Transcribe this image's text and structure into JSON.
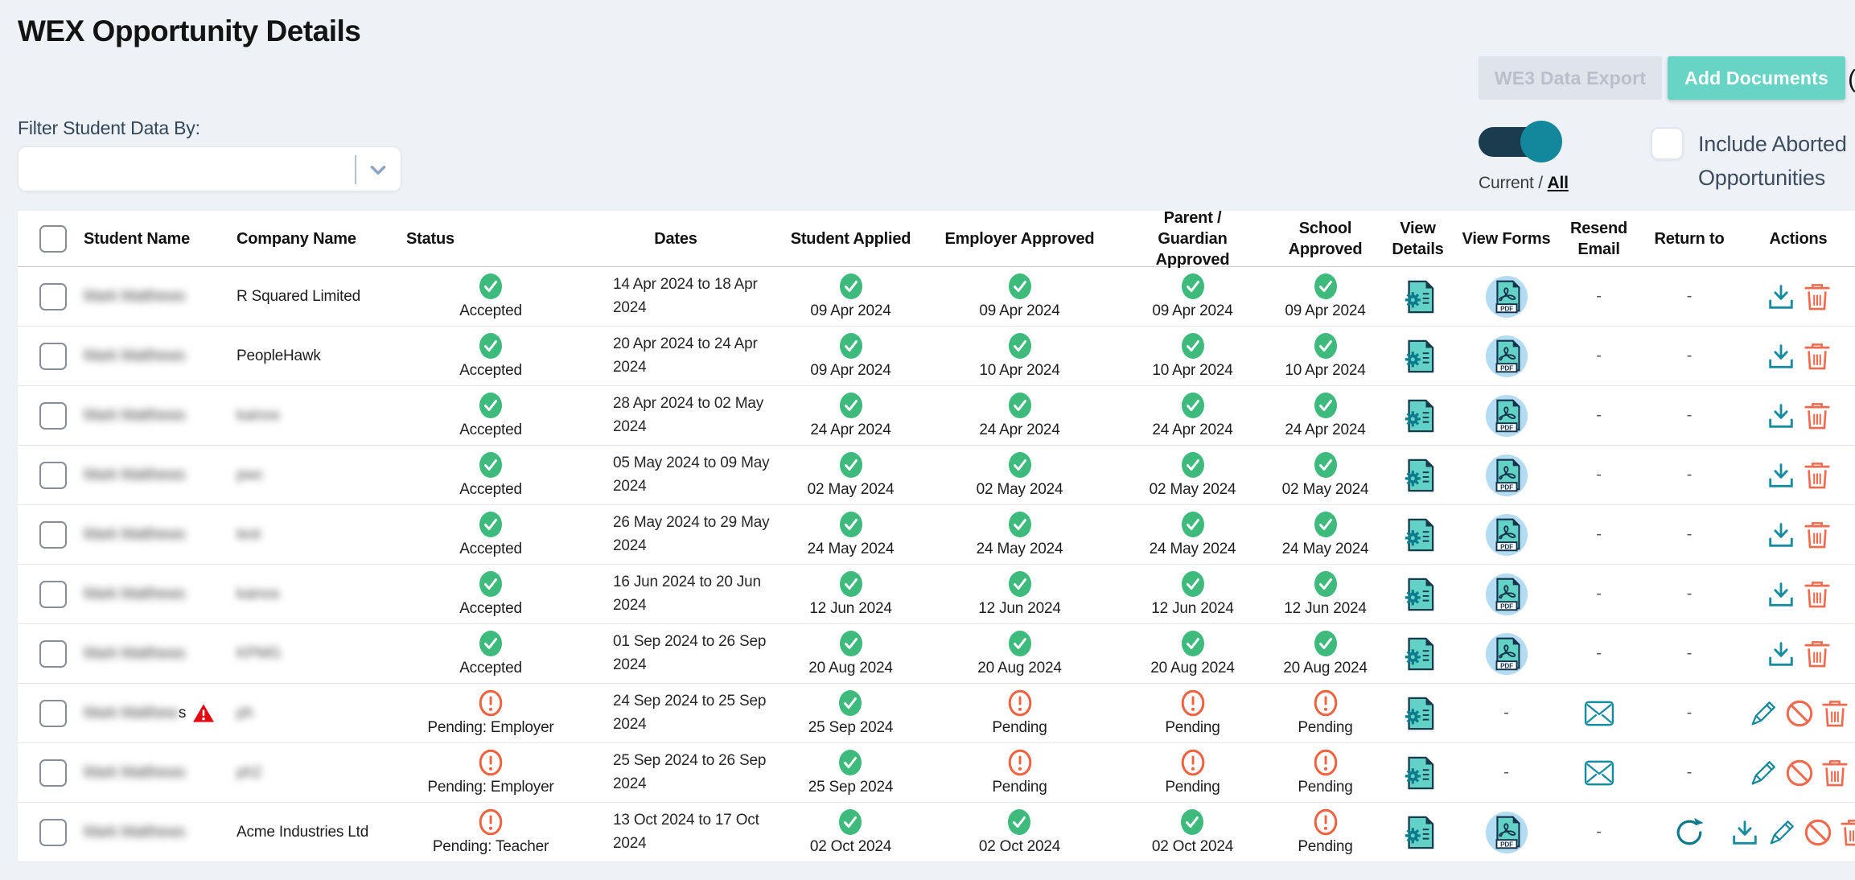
{
  "page": {
    "title": "WEX Opportunity Details"
  },
  "toolbar": {
    "we3_export": "WE3 Data Export",
    "add_documents": "Add Documents",
    "clipped_text": "(",
    "view_toggle": {
      "left": "Current",
      "sep": " / ",
      "right": "All"
    },
    "include_aborted": "Include Aborted Opportunities"
  },
  "filter": {
    "label": "Filter Student Data By:",
    "value": ""
  },
  "colors": {
    "page_bg": "#eef1f6",
    "accent_teal": "#67d4c6",
    "toggle_track": "#1b3b4f",
    "toggle_knob": "#13889c",
    "approved_green": "#3eba7c",
    "pending_orange": "#f2613e",
    "icon_teal": "#168ca0",
    "danger_orange": "#f26a4e",
    "alert_red": "#e30b13",
    "pdf_circle_blue": "#b3dcf2",
    "disabled_btn_bg": "#dfe3ea"
  },
  "icons": {
    "view_details": "gear-document-icon",
    "view_forms": "pdf-file-icon",
    "resend_email": "envelope-icon",
    "return_to": "refresh-icon",
    "download": "download-icon",
    "edit": "pencil-icon",
    "cancel": "ban-icon",
    "delete": "trash-icon",
    "warning": "alert-triangle-icon",
    "approved": "check-circle-icon",
    "pending": "exclamation-circle-icon"
  },
  "table": {
    "empty_marker": "-",
    "headers": [
      "Student Name",
      "Company Name",
      "Status",
      "Dates",
      "Student Applied",
      "Employer Approved",
      "Parent / Guardian Approved",
      "School Approved",
      "View Details",
      "View Forms",
      "Resend Email",
      "Return to",
      "Actions"
    ],
    "rows": [
      {
        "student": "Mark Matthews",
        "student_blurred": true,
        "student_suffix": "",
        "warning": false,
        "company": "R Squared Limited",
        "company_blurred": false,
        "status": {
          "state": "approved",
          "label": "Accepted"
        },
        "dates": "14 Apr 2024 to 18 Apr 2024",
        "student_applied": {
          "state": "approved",
          "text": "09 Apr 2024"
        },
        "employer_approved": {
          "state": "approved",
          "text": "09 Apr 2024"
        },
        "parent_guardian_approved": {
          "state": "approved",
          "text": "09 Apr 2024"
        },
        "school_approved": {
          "state": "approved",
          "text": "09 Apr 2024"
        },
        "view_details": true,
        "view_forms": "pdf",
        "resend_email": "none",
        "return_to": "none",
        "actions": [
          "download",
          "delete"
        ]
      },
      {
        "student": "Mark Matthews",
        "student_blurred": true,
        "student_suffix": "",
        "warning": false,
        "company": "PeopleHawk",
        "company_blurred": false,
        "status": {
          "state": "approved",
          "label": "Accepted"
        },
        "dates": "20 Apr 2024 to 24 Apr 2024",
        "student_applied": {
          "state": "approved",
          "text": "09 Apr 2024"
        },
        "employer_approved": {
          "state": "approved",
          "text": "10 Apr 2024"
        },
        "parent_guardian_approved": {
          "state": "approved",
          "text": "10 Apr 2024"
        },
        "school_approved": {
          "state": "approved",
          "text": "10 Apr 2024"
        },
        "view_details": true,
        "view_forms": "pdf",
        "resend_email": "none",
        "return_to": "none",
        "actions": [
          "download",
          "delete"
        ]
      },
      {
        "student": "Mark Matthews",
        "student_blurred": true,
        "student_suffix": "",
        "warning": false,
        "company": "kainos",
        "company_blurred": true,
        "status": {
          "state": "approved",
          "label": "Accepted"
        },
        "dates": "28 Apr 2024 to 02 May 2024",
        "student_applied": {
          "state": "approved",
          "text": "24 Apr 2024"
        },
        "employer_approved": {
          "state": "approved",
          "text": "24 Apr 2024"
        },
        "parent_guardian_approved": {
          "state": "approved",
          "text": "24 Apr 2024"
        },
        "school_approved": {
          "state": "approved",
          "text": "24 Apr 2024"
        },
        "view_details": true,
        "view_forms": "pdf",
        "resend_email": "none",
        "return_to": "none",
        "actions": [
          "download",
          "delete"
        ]
      },
      {
        "student": "Mark Matthews",
        "student_blurred": true,
        "student_suffix": "",
        "warning": false,
        "company": "pwc",
        "company_blurred": true,
        "status": {
          "state": "approved",
          "label": "Accepted"
        },
        "dates": "05 May 2024 to 09 May 2024",
        "student_applied": {
          "state": "approved",
          "text": "02 May 2024"
        },
        "employer_approved": {
          "state": "approved",
          "text": "02 May 2024"
        },
        "parent_guardian_approved": {
          "state": "approved",
          "text": "02 May 2024"
        },
        "school_approved": {
          "state": "approved",
          "text": "02 May 2024"
        },
        "view_details": true,
        "view_forms": "pdf",
        "resend_email": "none",
        "return_to": "none",
        "actions": [
          "download",
          "delete"
        ]
      },
      {
        "student": "Mark Matthews",
        "student_blurred": true,
        "student_suffix": "",
        "warning": false,
        "company": "test",
        "company_blurred": true,
        "status": {
          "state": "approved",
          "label": "Accepted"
        },
        "dates": "26 May 2024 to 29 May 2024",
        "student_applied": {
          "state": "approved",
          "text": "24 May 2024"
        },
        "employer_approved": {
          "state": "approved",
          "text": "24 May 2024"
        },
        "parent_guardian_approved": {
          "state": "approved",
          "text": "24 May 2024"
        },
        "school_approved": {
          "state": "approved",
          "text": "24 May 2024"
        },
        "view_details": true,
        "view_forms": "pdf",
        "resend_email": "none",
        "return_to": "none",
        "actions": [
          "download",
          "delete"
        ]
      },
      {
        "student": "Mark Matthews",
        "student_blurred": true,
        "student_suffix": "",
        "warning": false,
        "company": "kainos",
        "company_blurred": true,
        "status": {
          "state": "approved",
          "label": "Accepted"
        },
        "dates": "16 Jun 2024 to 20 Jun 2024",
        "student_applied": {
          "state": "approved",
          "text": "12 Jun 2024"
        },
        "employer_approved": {
          "state": "approved",
          "text": "12 Jun 2024"
        },
        "parent_guardian_approved": {
          "state": "approved",
          "text": "12 Jun 2024"
        },
        "school_approved": {
          "state": "approved",
          "text": "12 Jun 2024"
        },
        "view_details": true,
        "view_forms": "pdf",
        "resend_email": "none",
        "return_to": "none",
        "actions": [
          "download",
          "delete"
        ]
      },
      {
        "student": "Mark Matthews",
        "student_blurred": true,
        "student_suffix": "",
        "warning": false,
        "company": "KPMG",
        "company_blurred": true,
        "status": {
          "state": "approved",
          "label": "Accepted"
        },
        "dates": "01 Sep 2024 to 26 Sep 2024",
        "student_applied": {
          "state": "approved",
          "text": "20 Aug 2024"
        },
        "employer_approved": {
          "state": "approved",
          "text": "20 Aug 2024"
        },
        "parent_guardian_approved": {
          "state": "approved",
          "text": "20 Aug 2024"
        },
        "school_approved": {
          "state": "approved",
          "text": "20 Aug 2024"
        },
        "view_details": true,
        "view_forms": "pdf",
        "resend_email": "none",
        "return_to": "none",
        "actions": [
          "download",
          "delete"
        ]
      },
      {
        "student": "Mark Matthew",
        "student_blurred": true,
        "student_suffix": "s",
        "warning": true,
        "company": "ph",
        "company_blurred": true,
        "status": {
          "state": "pending",
          "label": "Pending: Employer"
        },
        "dates": "24 Sep 2024 to 25 Sep 2024",
        "student_applied": {
          "state": "approved",
          "text": "25 Sep 2024"
        },
        "employer_approved": {
          "state": "pending",
          "text": "Pending"
        },
        "parent_guardian_approved": {
          "state": "pending",
          "text": "Pending"
        },
        "school_approved": {
          "state": "pending",
          "text": "Pending"
        },
        "view_details": true,
        "view_forms": "none",
        "resend_email": "mail",
        "return_to": "none",
        "actions": [
          "edit",
          "cancel",
          "delete"
        ]
      },
      {
        "student": "Mark Matthews",
        "student_blurred": true,
        "student_suffix": "",
        "warning": false,
        "company": "ph2",
        "company_blurred": true,
        "status": {
          "state": "pending",
          "label": "Pending: Employer"
        },
        "dates": "25 Sep 2024 to 26 Sep 2024",
        "student_applied": {
          "state": "approved",
          "text": "25 Sep 2024"
        },
        "employer_approved": {
          "state": "pending",
          "text": "Pending"
        },
        "parent_guardian_approved": {
          "state": "pending",
          "text": "Pending"
        },
        "school_approved": {
          "state": "pending",
          "text": "Pending"
        },
        "view_details": true,
        "view_forms": "none",
        "resend_email": "mail",
        "return_to": "none",
        "actions": [
          "edit",
          "cancel",
          "delete"
        ]
      },
      {
        "student": "Mark Matthews",
        "student_blurred": true,
        "student_suffix": "",
        "warning": false,
        "company": "Acme Industries Ltd",
        "company_blurred": false,
        "status": {
          "state": "pending",
          "label": "Pending: Teacher"
        },
        "dates": "13 Oct 2024 to 17 Oct 2024",
        "student_applied": {
          "state": "approved",
          "text": "02 Oct 2024"
        },
        "employer_approved": {
          "state": "approved",
          "text": "02 Oct 2024"
        },
        "parent_guardian_approved": {
          "state": "approved",
          "text": "02 Oct 2024"
        },
        "school_approved": {
          "state": "pending",
          "text": "Pending"
        },
        "view_details": true,
        "view_forms": "pdf",
        "resend_email": "none",
        "return_to": "refresh",
        "actions": [
          "download",
          "edit",
          "cancel",
          "delete"
        ]
      }
    ]
  }
}
